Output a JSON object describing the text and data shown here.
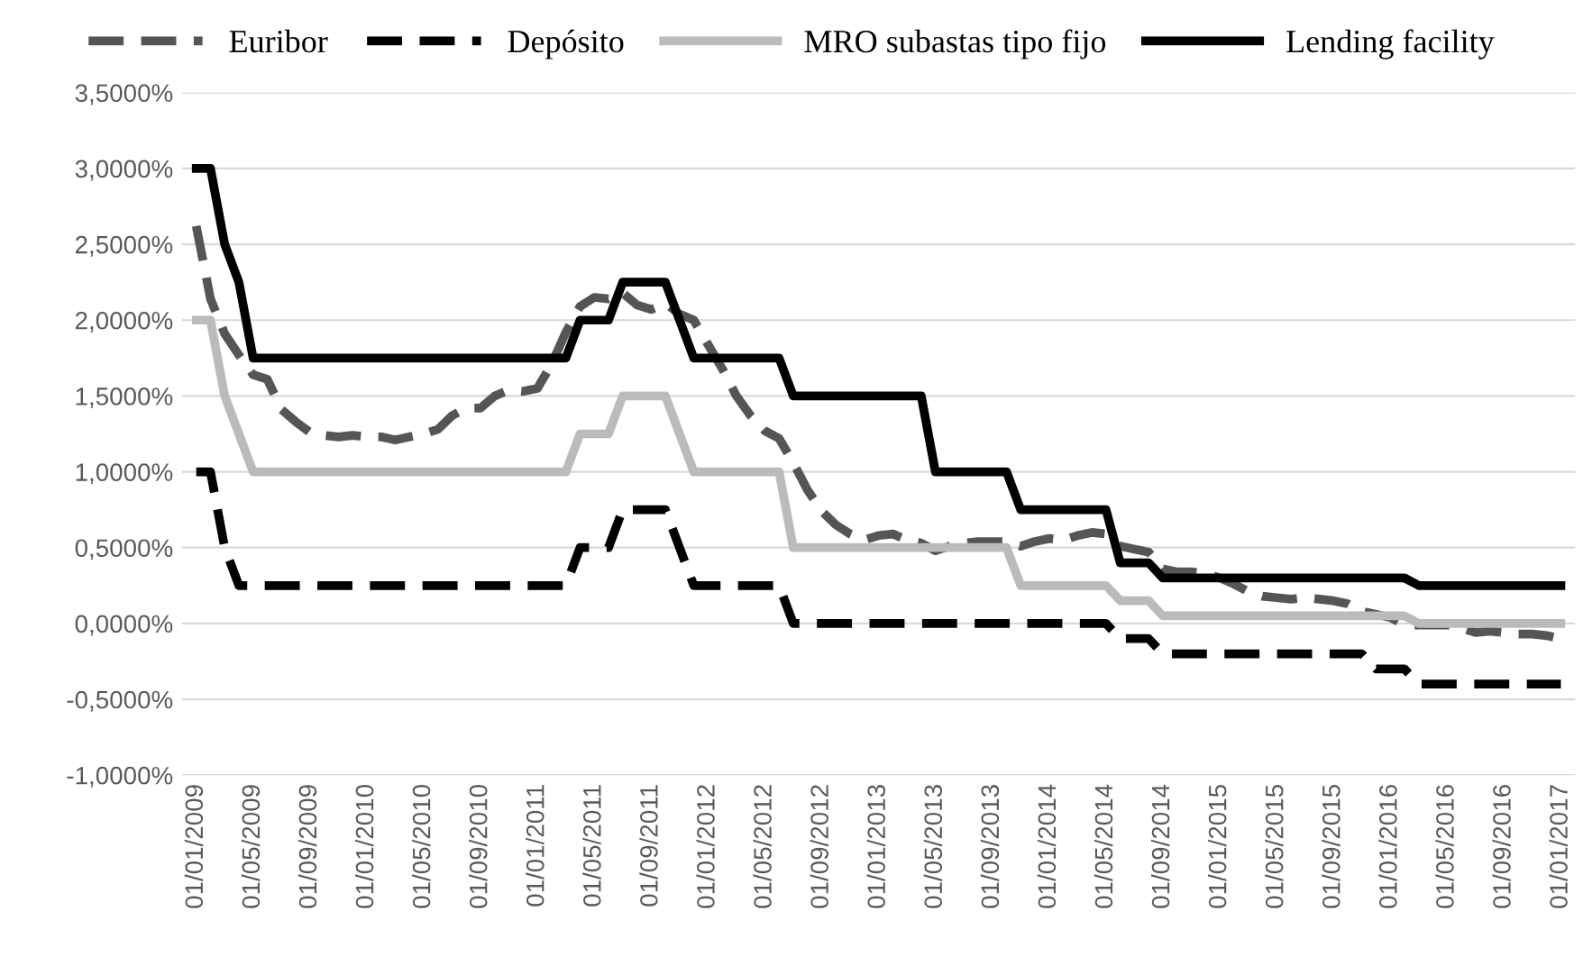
{
  "chart_data": {
    "type": "line",
    "legend": "top",
    "grid": "y",
    "categories": [
      "01/01/2009",
      null,
      null,
      null,
      "01/05/2009",
      null,
      null,
      null,
      "01/09/2009",
      null,
      null,
      null,
      "01/01/2010",
      null,
      null,
      null,
      "01/05/2010",
      null,
      null,
      null,
      "01/09/2010",
      null,
      null,
      null,
      "01/01/2011",
      null,
      null,
      null,
      "01/05/2011",
      null,
      null,
      null,
      "01/09/2011",
      null,
      null,
      null,
      "01/01/2012",
      null,
      null,
      null,
      "01/05/2012",
      null,
      null,
      null,
      "01/09/2012",
      null,
      null,
      null,
      "01/01/2013",
      null,
      null,
      null,
      "01/05/2013",
      null,
      null,
      null,
      "01/09/2013",
      null,
      null,
      null,
      "01/01/2014",
      null,
      null,
      null,
      "01/05/2014",
      null,
      null,
      null,
      "01/09/2014",
      null,
      null,
      null,
      "01/01/2015",
      null,
      null,
      null,
      "01/05/2015",
      null,
      null,
      null,
      "01/09/2015",
      null,
      null,
      null,
      "01/01/2016",
      null,
      null,
      null,
      "01/05/2016",
      null,
      null,
      null,
      "01/09/2016",
      null,
      null,
      null,
      "01/01/2017"
    ],
    "ylim": [
      -1,
      3.5
    ],
    "yticks": [
      {
        "value": -1,
        "label": "-1,0000%"
      },
      {
        "value": -0.5,
        "label": "-0,5000%"
      },
      {
        "value": 0,
        "label": "0,0000%"
      },
      {
        "value": 0.5,
        "label": "0,5000%"
      },
      {
        "value": 1,
        "label": "1,0000%"
      },
      {
        "value": 1.5,
        "label": "1,5000%"
      },
      {
        "value": 2,
        "label": "2,0000%"
      },
      {
        "value": 2.5,
        "label": "2,5000%"
      },
      {
        "value": 3,
        "label": "3,0000%"
      },
      {
        "value": 3.5,
        "label": "3,5000%"
      }
    ],
    "series": [
      {
        "name": "Euribor",
        "color": "#555555",
        "line_style": "dashed",
        "values": [
          2.62,
          2.14,
          1.91,
          1.77,
          1.64,
          1.61,
          1.41,
          1.33,
          1.26,
          1.24,
          1.23,
          1.24,
          1.23,
          1.23,
          1.21,
          1.23,
          1.25,
          1.28,
          1.37,
          1.42,
          1.42,
          1.5,
          1.54,
          1.53,
          1.55,
          1.71,
          1.92,
          2.09,
          2.15,
          2.14,
          2.18,
          2.1,
          2.07,
          2.11,
          2.04,
          2.0,
          1.84,
          1.68,
          1.5,
          1.37,
          1.27,
          1.22,
          1.06,
          0.88,
          0.74,
          0.65,
          0.59,
          0.55,
          0.58,
          0.59,
          0.55,
          0.53,
          0.48,
          0.51,
          0.53,
          0.54,
          0.54,
          0.54,
          0.51,
          0.54,
          0.56,
          0.55,
          0.58,
          0.6,
          0.59,
          0.51,
          0.49,
          0.47,
          0.36,
          0.34,
          0.34,
          0.33,
          0.3,
          0.26,
          0.21,
          0.18,
          0.17,
          0.16,
          0.17,
          0.16,
          0.15,
          0.13,
          0.08,
          0.06,
          0.04,
          -0.01,
          -0.01,
          -0.01,
          -0.01,
          -0.03,
          -0.06,
          -0.05,
          -0.06,
          -0.07,
          -0.07,
          -0.08,
          -0.1
        ]
      },
      {
        "name": "Depósito",
        "color": "#000000",
        "line_style": "dashed",
        "values": [
          1.0,
          1.0,
          0.5,
          0.25,
          0.25,
          0.25,
          0.25,
          0.25,
          0.25,
          0.25,
          0.25,
          0.25,
          0.25,
          0.25,
          0.25,
          0.25,
          0.25,
          0.25,
          0.25,
          0.25,
          0.25,
          0.25,
          0.25,
          0.25,
          0.25,
          0.25,
          0.25,
          0.5,
          0.5,
          0.5,
          0.75,
          0.75,
          0.75,
          0.75,
          0.5,
          0.25,
          0.25,
          0.25,
          0.25,
          0.25,
          0.25,
          0.25,
          0,
          0,
          0,
          0,
          0,
          0,
          0,
          0,
          0,
          0,
          0,
          0,
          0,
          0,
          0,
          0,
          0,
          0,
          0,
          0,
          0,
          0,
          0,
          -0.1,
          -0.1,
          -0.1,
          -0.2,
          -0.2,
          -0.2,
          -0.2,
          -0.2,
          -0.2,
          -0.2,
          -0.2,
          -0.2,
          -0.2,
          -0.2,
          -0.2,
          -0.2,
          -0.2,
          -0.2,
          -0.3,
          -0.3,
          -0.3,
          -0.4,
          -0.4,
          -0.4,
          -0.4,
          -0.4,
          -0.4,
          -0.4,
          -0.4,
          -0.4,
          -0.4,
          -0.4
        ]
      },
      {
        "name": "MRO subastas tipo fijo",
        "color": "#bbbbbb",
        "line_style": "solid",
        "values": [
          2.0,
          2.0,
          1.5,
          1.25,
          1.0,
          1.0,
          1.0,
          1.0,
          1.0,
          1.0,
          1.0,
          1.0,
          1.0,
          1.0,
          1.0,
          1.0,
          1.0,
          1.0,
          1.0,
          1.0,
          1.0,
          1.0,
          1.0,
          1.0,
          1.0,
          1.0,
          1.0,
          1.25,
          1.25,
          1.25,
          1.5,
          1.5,
          1.5,
          1.5,
          1.25,
          1.0,
          1.0,
          1.0,
          1.0,
          1.0,
          1.0,
          1.0,
          0.5,
          0.5,
          0.5,
          0.5,
          0.5,
          0.5,
          0.5,
          0.5,
          0.5,
          0.5,
          0.5,
          0.5,
          0.5,
          0.5,
          0.5,
          0.5,
          0.25,
          0.25,
          0.25,
          0.25,
          0.25,
          0.25,
          0.25,
          0.15,
          0.15,
          0.15,
          0.05,
          0.05,
          0.05,
          0.05,
          0.05,
          0.05,
          0.05,
          0.05,
          0.05,
          0.05,
          0.05,
          0.05,
          0.05,
          0.05,
          0.05,
          0.05,
          0.05,
          0.05,
          0,
          0,
          0,
          0,
          0,
          0,
          0,
          0,
          0,
          0,
          0
        ]
      },
      {
        "name": "Lending facility",
        "color": "#000000",
        "line_style": "solid",
        "values": [
          3.0,
          3.0,
          2.5,
          2.25,
          1.75,
          1.75,
          1.75,
          1.75,
          1.75,
          1.75,
          1.75,
          1.75,
          1.75,
          1.75,
          1.75,
          1.75,
          1.75,
          1.75,
          1.75,
          1.75,
          1.75,
          1.75,
          1.75,
          1.75,
          1.75,
          1.75,
          1.75,
          2.0,
          2.0,
          2.0,
          2.25,
          2.25,
          2.25,
          2.25,
          2.0,
          1.75,
          1.75,
          1.75,
          1.75,
          1.75,
          1.75,
          1.75,
          1.5,
          1.5,
          1.5,
          1.5,
          1.5,
          1.5,
          1.5,
          1.5,
          1.5,
          1.5,
          1.0,
          1.0,
          1.0,
          1.0,
          1.0,
          1.0,
          0.75,
          0.75,
          0.75,
          0.75,
          0.75,
          0.75,
          0.75,
          0.4,
          0.4,
          0.4,
          0.3,
          0.3,
          0.3,
          0.3,
          0.3,
          0.3,
          0.3,
          0.3,
          0.3,
          0.3,
          0.3,
          0.3,
          0.3,
          0.3,
          0.3,
          0.3,
          0.3,
          0.3,
          0.25,
          0.25,
          0.25,
          0.25,
          0.25,
          0.25,
          0.25,
          0.25,
          0.25,
          0.25,
          0.25
        ]
      }
    ]
  }
}
